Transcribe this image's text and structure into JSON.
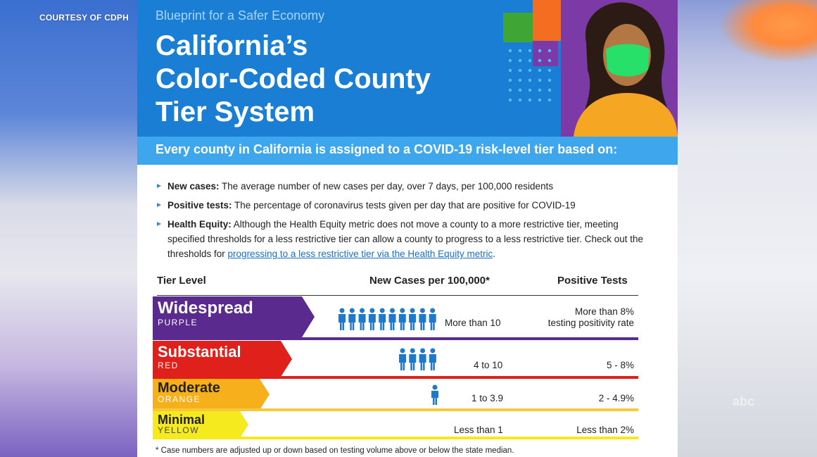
{
  "credit": "COURTESY OF CDPH",
  "header": {
    "subtitle": "Blueprint for a Safer Economy",
    "title_line1": "California’s",
    "title_line2": "Color-Coded County",
    "title_line3": "Tier System"
  },
  "banner": "Every county in California is assigned to a COVID-19 risk-level tier based on:",
  "bullets": {
    "new_cases_label": "New cases:",
    "new_cases_text": " The average number of new cases per day, over 7 days, per 100,000 residents",
    "positive_label": "Positive tests:",
    "positive_text": " The percentage of coronavirus tests given per day that are positive for COVID-19",
    "equity_label": "Health Equity:",
    "equity_text": " Although the Health Equity metric does not move a county to a more restrictive tier, meeting specified thresholds for a less restrictive tier can allow a county to progress to a less restrictive tier. Check out the thresholds for ",
    "equity_link": "progressing to a less restrictive tier via the Health Equity metric",
    "equity_end": "."
  },
  "table": {
    "col_tier": "Tier Level",
    "col_cases": "New Cases per 100,000*",
    "col_positive": "Positive Tests",
    "rows": [
      {
        "name": "Widespread",
        "color_name": "PURPLE",
        "cases": "More than 10",
        "positive_line1": "More than 8%",
        "positive_line2": "testing positivity rate",
        "people": 10
      },
      {
        "name": "Substantial",
        "color_name": "RED",
        "cases": "4 to 10",
        "positive_line1": "5 - 8%",
        "people": 4
      },
      {
        "name": "Moderate",
        "color_name": "ORANGE",
        "cases": "1 to 3.9",
        "positive_line1": "2 - 4.9%",
        "people": 1
      },
      {
        "name": "Minimal",
        "color_name": "YELLOW",
        "cases": "Less than 1",
        "positive_line1": "Less than 2%",
        "people": 0
      }
    ]
  },
  "footnote": "* Case numbers are adjusted up or down based on testing volume above or below the state median.",
  "colors": {
    "header_blue": "#1a7fd4",
    "banner_blue": "#3ea6ec",
    "purple": "#5b2a8e",
    "red": "#e0201b",
    "orange": "#f6b01c",
    "yellow": "#f5ea1e",
    "person_blue": "#1f78c8"
  },
  "watermark": "abc"
}
